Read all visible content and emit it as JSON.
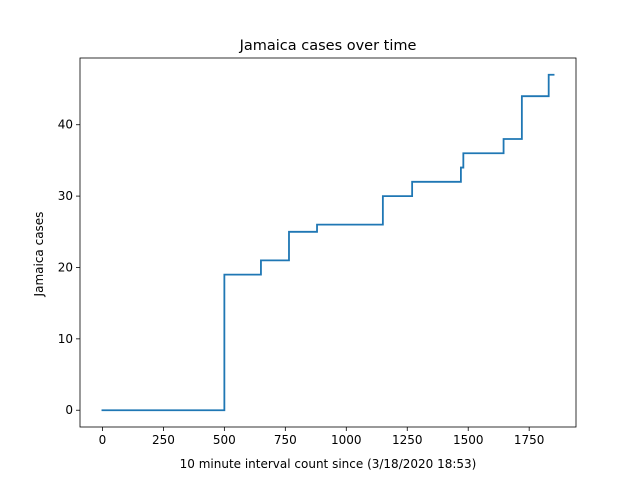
{
  "chart_data": {
    "type": "line",
    "drawstyle": "steps-post",
    "title": "Jamaica cases over time",
    "xlabel": "10 minute interval count since (3/18/2020 18:53)",
    "ylabel": "Jamaica cases",
    "xlim": [
      -92,
      1942
    ],
    "ylim": [
      -2.35,
      49.35
    ],
    "xticks": [
      0,
      250,
      500,
      750,
      1000,
      1250,
      1500,
      1750
    ],
    "xtick_labels": [
      "0",
      "250",
      "500",
      "750",
      "1000",
      "1250",
      "1500",
      "1750"
    ],
    "yticks": [
      0,
      10,
      20,
      30,
      40
    ],
    "ytick_labels": [
      "0",
      "10",
      "20",
      "30",
      "40"
    ],
    "grid": false,
    "legend": "none",
    "color": "#1f77b4",
    "series": [
      {
        "x": [
          0,
          500,
          650,
          765,
          880,
          1150,
          1270,
          1470,
          1480,
          1645,
          1720,
          1830,
          1850
        ],
        "y": [
          0,
          19,
          21,
          25,
          26,
          30,
          32,
          34,
          36,
          38,
          44,
          47,
          47
        ]
      }
    ]
  }
}
